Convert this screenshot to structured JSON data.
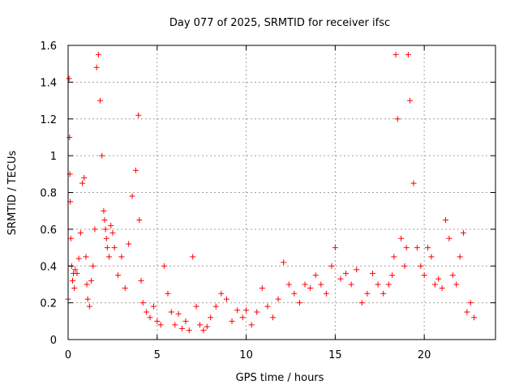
{
  "chart_data": {
    "type": "scatter",
    "title": "Day 077 of 2025, SRMTID for receiver ifsc",
    "xlabel": "GPS time / hours",
    "ylabel": "SRMTID / TECUs",
    "xlim": [
      0,
      24
    ],
    "ylim": [
      0,
      1.6
    ],
    "x_ticks": [
      0,
      5,
      10,
      15,
      20
    ],
    "x_tick_labels": [
      "0",
      "5",
      "10",
      "15",
      "20"
    ],
    "y_ticks": [
      0,
      0.2,
      0.4,
      0.6,
      0.8,
      1,
      1.2,
      1.4,
      1.6
    ],
    "y_tick_labels": [
      "0",
      "0.2",
      "0.4",
      "0.6",
      "0.8",
      "1",
      "1.2",
      "1.4",
      "1.6"
    ],
    "grid": true,
    "marker": "+",
    "marker_color": "#ff0000",
    "series": [
      {
        "name": "SRMTID",
        "x": [
          0.0,
          0.05,
          0.08,
          0.1,
          0.12,
          0.15,
          0.2,
          0.25,
          0.3,
          0.35,
          0.4,
          0.5,
          0.6,
          0.7,
          0.8,
          0.9,
          1.0,
          1.05,
          1.1,
          1.2,
          1.3,
          1.4,
          1.5,
          1.6,
          1.7,
          1.8,
          1.9,
          2.0,
          2.05,
          2.1,
          2.15,
          2.2,
          2.3,
          2.4,
          2.5,
          2.6,
          2.8,
          3.0,
          3.2,
          3.4,
          3.6,
          3.8,
          3.95,
          4.0,
          4.1,
          4.2,
          4.4,
          4.6,
          4.8,
          5.0,
          5.2,
          5.4,
          5.6,
          5.8,
          6.0,
          6.2,
          6.4,
          6.6,
          6.8,
          7.0,
          7.2,
          7.4,
          7.6,
          7.8,
          8.0,
          8.3,
          8.6,
          8.9,
          9.2,
          9.5,
          9.8,
          10.0,
          10.3,
          10.6,
          10.9,
          11.2,
          11.5,
          11.8,
          12.1,
          12.4,
          12.7,
          13.0,
          13.3,
          13.6,
          13.9,
          14.2,
          14.5,
          14.8,
          15.0,
          15.3,
          15.6,
          15.9,
          16.2,
          16.5,
          16.8,
          17.1,
          17.4,
          17.7,
          18.0,
          18.2,
          18.3,
          18.4,
          18.5,
          18.7,
          18.9,
          19.0,
          19.1,
          19.2,
          19.4,
          19.6,
          19.8,
          20.0,
          20.2,
          20.4,
          20.6,
          20.8,
          21.0,
          21.2,
          21.4,
          21.6,
          21.8,
          22.0,
          22.2,
          22.4,
          22.6,
          22.8
        ],
        "y": [
          0.22,
          1.42,
          1.1,
          0.9,
          0.75,
          0.55,
          0.4,
          0.32,
          0.36,
          0.28,
          0.38,
          0.36,
          0.44,
          0.58,
          0.85,
          0.88,
          0.45,
          0.3,
          0.22,
          0.18,
          0.32,
          0.4,
          0.6,
          1.48,
          1.55,
          1.3,
          1.0,
          0.7,
          0.65,
          0.6,
          0.55,
          0.5,
          0.45,
          0.62,
          0.58,
          0.5,
          0.35,
          0.45,
          0.28,
          0.52,
          0.78,
          0.92,
          1.22,
          0.65,
          0.32,
          0.2,
          0.15,
          0.12,
          0.18,
          0.1,
          0.08,
          0.4,
          0.25,
          0.15,
          0.08,
          0.14,
          0.06,
          0.1,
          0.05,
          0.45,
          0.18,
          0.08,
          0.05,
          0.07,
          0.12,
          0.18,
          0.25,
          0.22,
          0.1,
          0.16,
          0.12,
          0.16,
          0.08,
          0.15,
          0.28,
          0.18,
          0.12,
          0.22,
          0.42,
          0.3,
          0.25,
          0.2,
          0.3,
          0.28,
          0.35,
          0.3,
          0.25,
          0.4,
          0.5,
          0.33,
          0.36,
          0.3,
          0.38,
          0.2,
          0.25,
          0.36,
          0.3,
          0.25,
          0.3,
          0.35,
          0.45,
          1.55,
          1.2,
          0.55,
          0.4,
          0.5,
          1.55,
          1.3,
          0.85,
          0.5,
          0.4,
          0.35,
          0.5,
          0.45,
          0.3,
          0.33,
          0.28,
          0.65,
          0.55,
          0.35,
          0.3,
          0.45,
          0.58,
          0.15,
          0.2,
          0.12
        ]
      }
    ]
  }
}
